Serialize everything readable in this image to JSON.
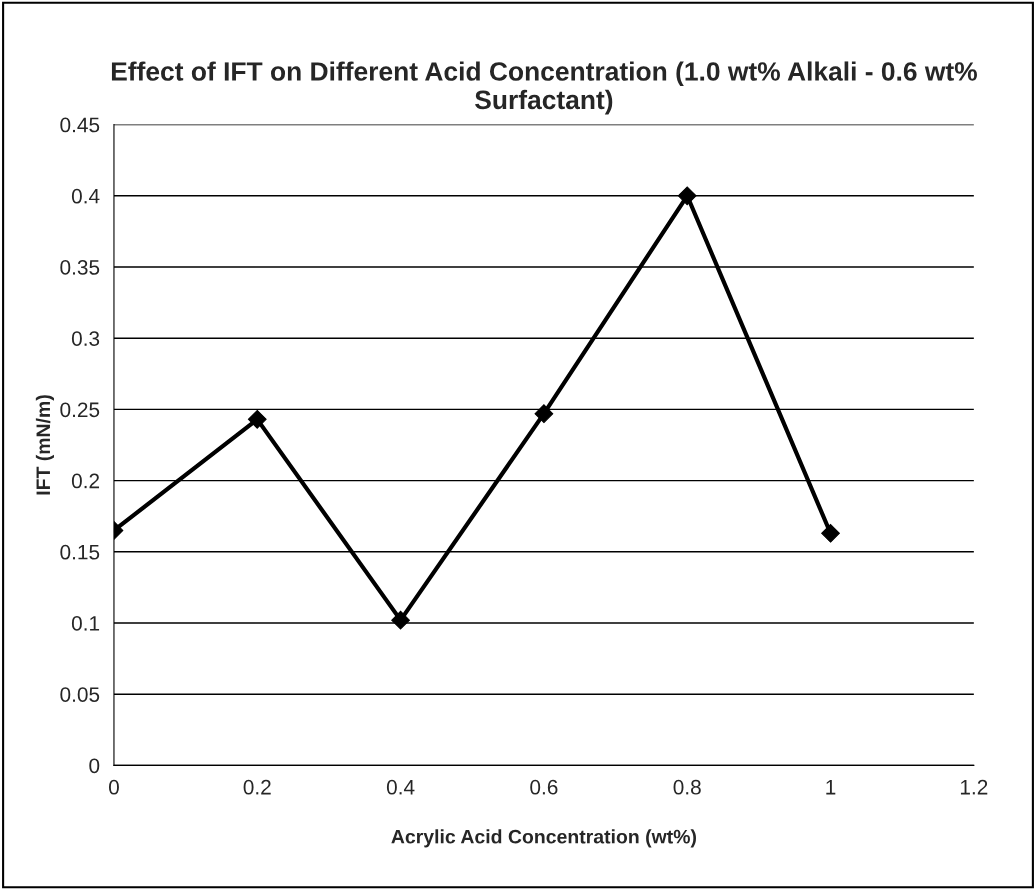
{
  "chart_data": {
    "type": "line",
    "title": "Effect of IFT on Different Acid Concentration (1.0 wt% Alkali - 0.6 wt% Surfactant)",
    "xlabel": "Acrylic Acid Concentration (wt%)",
    "ylabel": "IFT (mN/m)",
    "x": [
      0,
      0.2,
      0.4,
      0.6,
      0.8,
      1
    ],
    "series": [
      {
        "color": "#000000",
        "values": [
          0.165,
          0.243,
          0.102,
          0.247,
          0.4,
          0.163
        ]
      }
    ],
    "xlim": [
      0,
      1.2
    ],
    "xticks": [
      0,
      0.2,
      0.4,
      0.6,
      0.8,
      1,
      1.2
    ],
    "ylim": [
      0,
      0.45
    ],
    "yticks": [
      0,
      0.05,
      0.1,
      0.15,
      0.2,
      0.25,
      0.3,
      0.35,
      0.4,
      0.45
    ],
    "grid": "y",
    "marker": "diamond",
    "line_style": "solid"
  }
}
